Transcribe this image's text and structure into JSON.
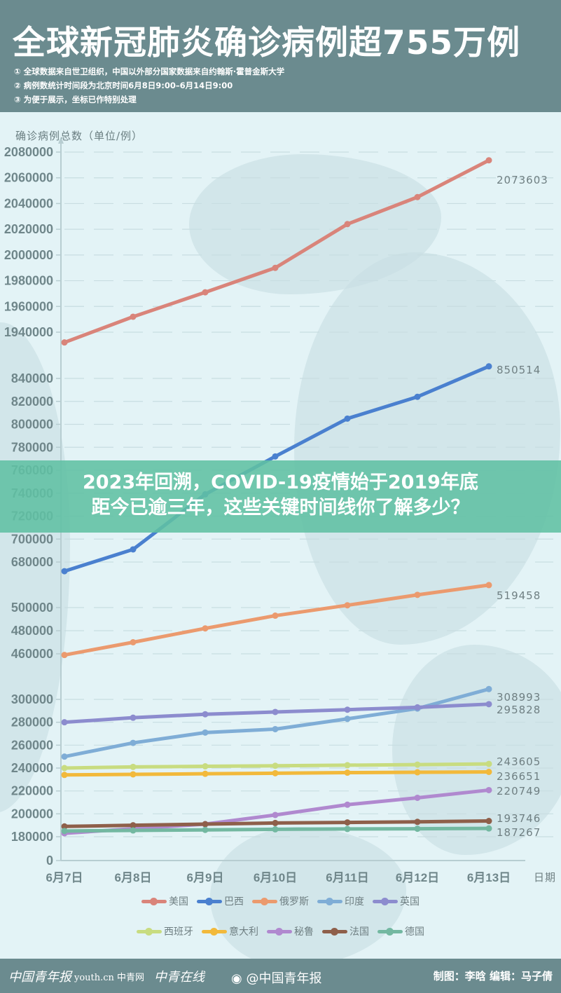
{
  "header": {
    "title": "全球新冠肺炎确诊病例超755万例",
    "notes": [
      "① 全球数据来自世卫组织，中国以外部分国家数据来自约翰斯·霍普金斯大学",
      "② 病例数统计时间段为北京时间6月8日9:00–6月14日9:00",
      "③ 为便于展示，坐标已作特别处理"
    ]
  },
  "overlay_banner": {
    "line1": "2023年回溯，COVID-19疫情始于2019年底",
    "line2": "距今已逾三年，这些关键时间线你了解多少？"
  },
  "footer": {
    "logos": [
      "中国青年报",
      "youth.cn 中青网",
      "中青在线"
    ],
    "weibo": "@中国青年报",
    "credit": "制图：李晗  编辑：马子倩"
  },
  "chart_data": {
    "type": "line",
    "title": "全球新冠肺炎确诊病例超755万例",
    "ylabel": "确诊病例总数（单位/例）",
    "xlabel": "日期",
    "categories": [
      "6月7日",
      "6月8日",
      "6月9日",
      "6月10日",
      "6月11日",
      "6月12日",
      "6月13日"
    ],
    "y_axis_note": "broken axis (segmented scale)",
    "y_ticks": [
      "2080000",
      "2060000",
      "2040000",
      "2020000",
      "2000000",
      "1980000",
      "1960000",
      "1940000",
      "840000",
      "820000",
      "800000",
      "780000",
      "760000",
      "740000",
      "720000",
      "700000",
      "680000",
      "500000",
      "480000",
      "460000",
      "300000",
      "280000",
      "260000",
      "240000",
      "220000",
      "200000",
      "180000",
      "0"
    ],
    "grid": true,
    "legend_position": "bottom",
    "series": [
      {
        "name": "美国",
        "color": "#d9847a",
        "values": [
          1932000,
          1952000,
          1971000,
          1990000,
          2024000,
          2045000,
          2073603
        ]
      },
      {
        "name": "巴西",
        "color": "#4a80cf",
        "values": [
          672000,
          691000,
          739000,
          772000,
          805000,
          824000,
          850514
        ]
      },
      {
        "name": "俄罗斯",
        "color": "#eb9a6e",
        "values": [
          459000,
          470000,
          482000,
          493000,
          502000,
          511000,
          519458
        ]
      },
      {
        "name": "印度",
        "color": "#7fadd6",
        "values": [
          250000,
          262000,
          271000,
          274000,
          283000,
          292000,
          308993
        ]
      },
      {
        "name": "英国",
        "color": "#8c8cce",
        "values": [
          280000,
          284000,
          287000,
          289000,
          291000,
          293000,
          295828
        ]
      },
      {
        "name": "西班牙",
        "color": "#c8dc80",
        "values": [
          240000,
          241000,
          241500,
          242000,
          242500,
          243000,
          243605
        ]
      },
      {
        "name": "意大利",
        "color": "#f2b93b",
        "values": [
          234000,
          234500,
          235000,
          235500,
          236000,
          236300,
          236651
        ]
      },
      {
        "name": "秘鲁",
        "color": "#b089cf",
        "values": [
          183000,
          187000,
          191000,
          199000,
          208000,
          214000,
          220749
        ]
      },
      {
        "name": "法国",
        "color": "#8e5f4a",
        "values": [
          189000,
          190000,
          191000,
          192000,
          192500,
          193000,
          193746
        ]
      },
      {
        "name": "德国",
        "color": "#73b8a1",
        "values": [
          185000,
          185500,
          186000,
          186500,
          186800,
          187000,
          187267
        ]
      }
    ],
    "end_labels": [
      "2073603",
      "850514",
      "519458",
      "308993",
      "295828",
      "243605",
      "236651",
      "220749",
      "193746",
      "187267"
    ]
  },
  "legend": {
    "row1": [
      {
        "name": "美国",
        "color": "#d9847a"
      },
      {
        "name": "巴西",
        "color": "#4a80cf"
      },
      {
        "name": "俄罗斯",
        "color": "#eb9a6e"
      },
      {
        "name": "印度",
        "color": "#7fadd6"
      },
      {
        "name": "英国",
        "color": "#8c8cce"
      }
    ],
    "row2": [
      {
        "name": "西班牙",
        "color": "#c8dc80"
      },
      {
        "name": "意大利",
        "color": "#f2b93b"
      },
      {
        "name": "秘鲁",
        "color": "#b089cf"
      },
      {
        "name": "法国",
        "color": "#8e5f4a"
      },
      {
        "name": "德国",
        "color": "#73b8a1"
      }
    ]
  }
}
